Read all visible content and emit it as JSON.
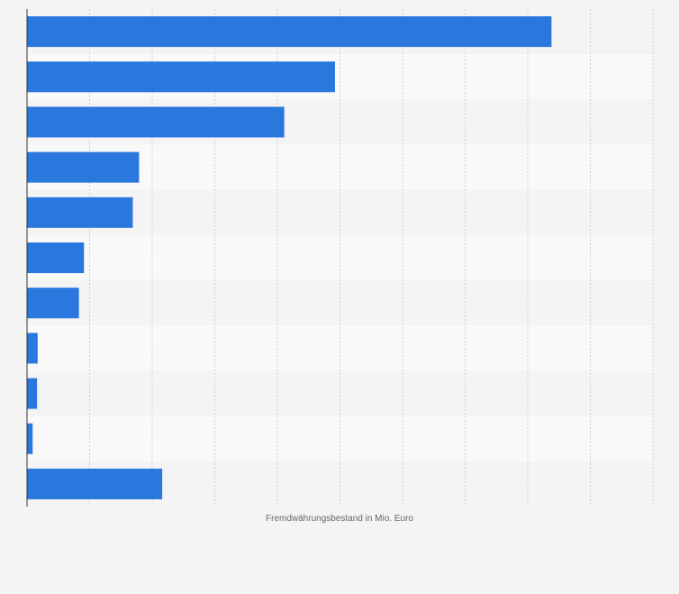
{
  "chart_data": {
    "type": "bar",
    "orientation": "horizontal",
    "categories": [
      "",
      "",
      "",
      "",
      "",
      "",
      "",
      "",
      "",
      "",
      ""
    ],
    "values": [
      838,
      492,
      411,
      179,
      169,
      91,
      83,
      17,
      16,
      9,
      216
    ],
    "xlabel": "Fremdwährungsbestand in Mio. Euro",
    "ylabel": "",
    "xlim": [
      0,
      1000
    ],
    "grid": true,
    "bar_color": "#2a77dd",
    "row_band_colors": [
      "#f4f4f4",
      "#f9f9f9"
    ]
  }
}
